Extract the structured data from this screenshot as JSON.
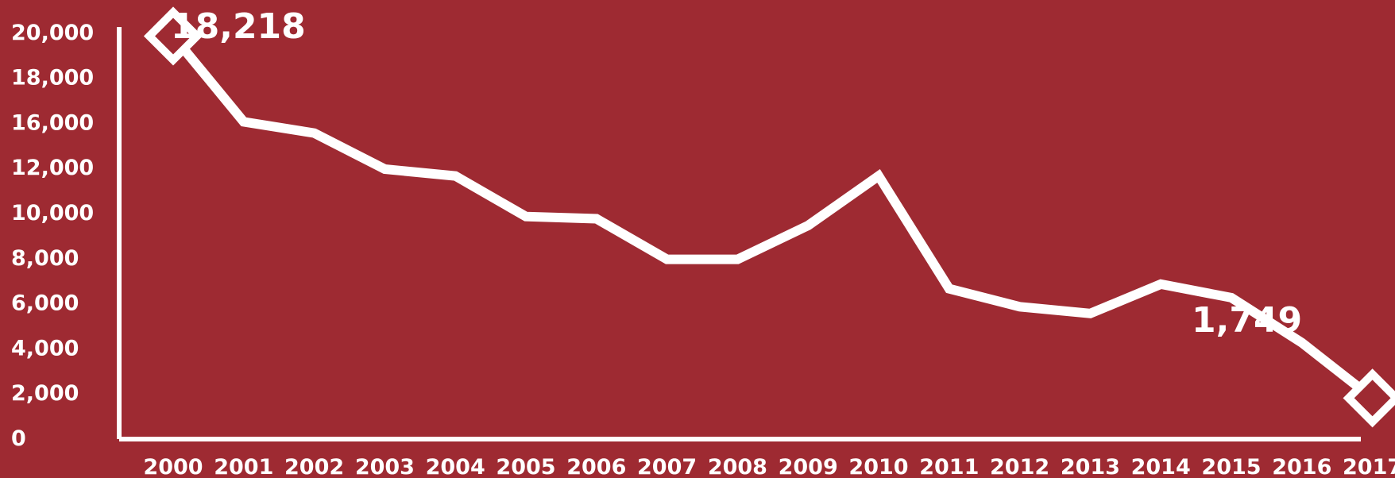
{
  "chart_data": {
    "type": "line",
    "title": "",
    "xlabel": "",
    "ylabel": "",
    "x": [
      "2000",
      "2001",
      "2002",
      "2003",
      "2004",
      "2005",
      "2006",
      "2007",
      "2008",
      "2009",
      "2010",
      "2011",
      "2012",
      "2013",
      "2014",
      "2015",
      "2016",
      "2017"
    ],
    "values": [
      17800,
      14000,
      13500,
      11900,
      11600,
      9800,
      9700,
      7900,
      7900,
      9400,
      11600,
      6600,
      5800,
      5500,
      6800,
      6200,
      4200,
      1749
    ],
    "ylim": [
      0,
      20000
    ],
    "yticks": [
      "0",
      "2,000",
      "4,000",
      "6,000",
      "8,000",
      "10,000",
      "12,000",
      "16,000",
      "18,000",
      "20,000"
    ],
    "grid": false,
    "annotations": [
      {
        "x": "2000",
        "label": "18,218"
      },
      {
        "x": "2017",
        "label": "1,749"
      }
    ],
    "colors": {
      "background": "#9e2a32",
      "line": "#ffffff"
    }
  }
}
